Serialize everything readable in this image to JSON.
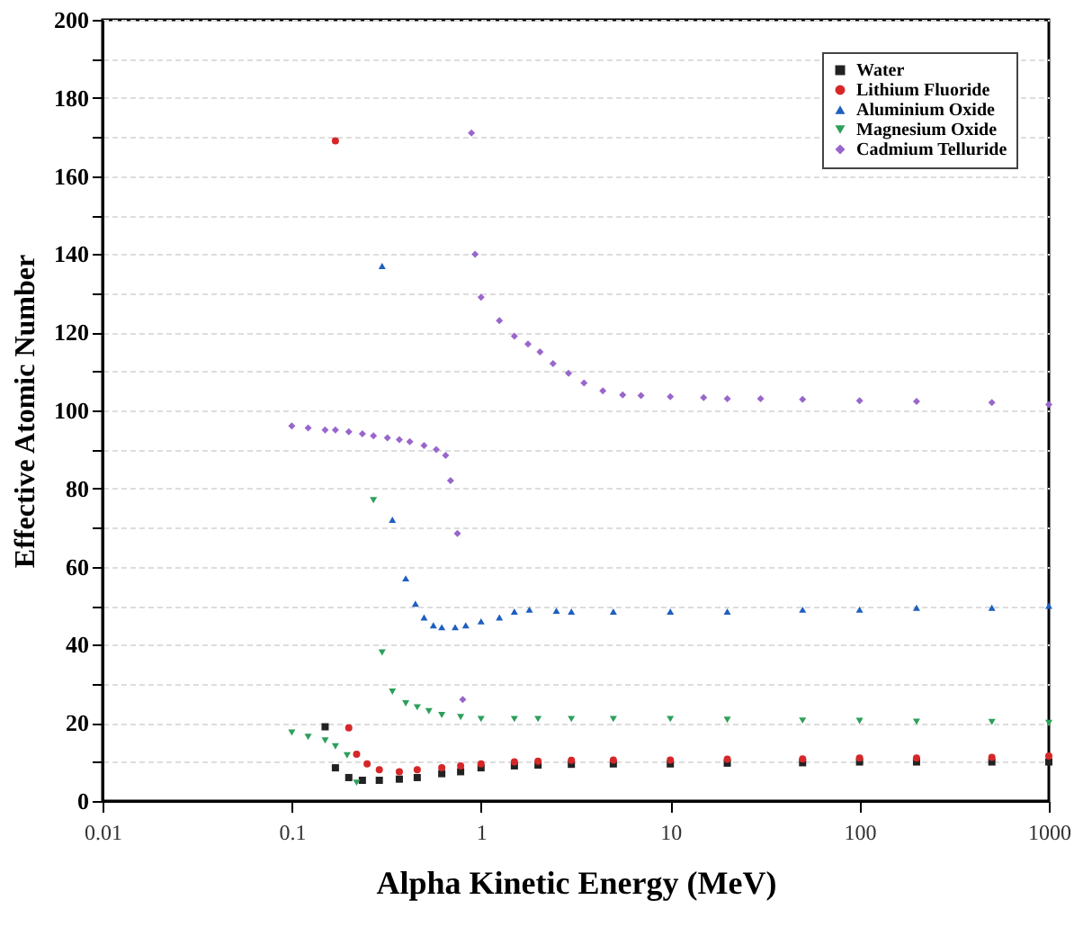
{
  "chart_data": {
    "type": "scatter",
    "xlabel": "Alpha Kinetic Energy (MeV)",
    "ylabel": "Effective Atomic Number",
    "log": "x",
    "xlim": [
      0.01,
      1000
    ],
    "xticks": [
      0.01,
      0.1,
      1,
      10,
      100,
      1000
    ],
    "ylim": [
      0,
      200
    ],
    "yticks": [
      0,
      {
        "value": 10,
        "label": null
      },
      20,
      {
        "value": 30,
        "label": null
      },
      40,
      {
        "value": 50,
        "label": null
      },
      60,
      {
        "value": 70,
        "label": null
      },
      80,
      {
        "value": 90,
        "label": null
      },
      100,
      {
        "value": 110,
        "label": null
      },
      120,
      {
        "value": 130,
        "label": null
      },
      140,
      {
        "value": 150,
        "label": null
      },
      160,
      {
        "value": 170,
        "label": null
      },
      180,
      {
        "value": 190,
        "label": null
      },
      200
    ],
    "grid": "y",
    "legend": "top right",
    "series": [
      {
        "name": "Water",
        "color": "#222222",
        "marker": "square",
        "x": [
          0.15,
          0.17,
          0.2,
          0.236,
          0.29,
          0.37,
          0.46,
          0.62,
          0.78,
          1.0,
          1.5,
          2,
          3,
          5,
          10,
          20,
          50,
          100,
          200,
          500,
          1000
        ],
        "values": [
          19,
          8.5,
          6,
          5.3,
          5.3,
          5.6,
          6,
          7,
          7.5,
          8.5,
          9,
          9.2,
          9.4,
          9.5,
          9.5,
          9.7,
          9.8,
          10,
          10,
          10,
          10
        ]
      },
      {
        "name": "Lithium Fluoride",
        "color": "#d62728",
        "marker": "circle",
        "x": [
          0.17,
          0.2,
          0.22,
          0.25,
          0.29,
          0.37,
          0.46,
          0.62,
          0.78,
          1.0,
          1.5,
          2,
          3,
          5,
          10,
          20,
          50,
          100,
          200,
          500,
          1000
        ],
        "values": [
          169,
          18.7,
          12,
          9.5,
          8,
          7.5,
          8,
          8.5,
          9,
          9.5,
          10,
          10.2,
          10.4,
          10.5,
          10.5,
          10.7,
          10.8,
          11,
          11,
          11.2,
          11.5
        ]
      },
      {
        "name": "Aluminium Oxide",
        "color": "#1f5fbf",
        "marker": "triangle",
        "x": [
          0.3,
          0.34,
          0.4,
          0.45,
          0.5,
          0.56,
          0.62,
          0.73,
          0.83,
          1.0,
          1.25,
          1.5,
          1.8,
          2.5,
          3,
          5,
          10,
          20,
          50,
          100,
          200,
          500,
          1000
        ],
        "values": [
          137,
          72,
          57,
          50.5,
          47,
          45,
          44.5,
          44.5,
          45,
          46,
          47,
          48.5,
          49,
          48.7,
          48.5,
          48.5,
          48.5,
          48.5,
          49,
          49,
          49.5,
          49.5,
          50
        ]
      },
      {
        "name": "Magnesium Oxide",
        "color": "#2ca05a",
        "marker": "triangle-down",
        "x": [
          0.1,
          0.122,
          0.15,
          0.17,
          0.196,
          0.22,
          0.27,
          0.3,
          0.34,
          0.4,
          0.46,
          0.53,
          0.62,
          0.78,
          1.0,
          1.5,
          2,
          3,
          5,
          10,
          20,
          50,
          100,
          200,
          500,
          1000
        ],
        "values": [
          17.5,
          16.4,
          15.5,
          14,
          11.7,
          4.7,
          77,
          38,
          28,
          25,
          24,
          23,
          22,
          21.5,
          21,
          21,
          21,
          21,
          21,
          21,
          20.8,
          20.6,
          20.5,
          20.3,
          20.2,
          20
        ]
      },
      {
        "name": "Cadmium Telluride",
        "color": "#9966cc",
        "marker": "diamond",
        "x": [
          0.1,
          0.122,
          0.15,
          0.17,
          0.2,
          0.236,
          0.27,
          0.32,
          0.37,
          0.42,
          0.5,
          0.58,
          0.65,
          0.69,
          0.75,
          0.8,
          0.89,
          0.93,
          1.0,
          1.25,
          1.5,
          1.77,
          2.05,
          2.4,
          2.9,
          3.5,
          4.4,
          5.6,
          7,
          10,
          15,
          20,
          30,
          50,
          100,
          200,
          500,
          1000
        ],
        "values": [
          96,
          95.5,
          95,
          95,
          94.5,
          94,
          93.5,
          93,
          92.5,
          92,
          91,
          90,
          88.5,
          82,
          68.5,
          26,
          171,
          140,
          129,
          123,
          119,
          117,
          115,
          112,
          109.5,
          107,
          105,
          104,
          103.8,
          103.5,
          103.3,
          103,
          103,
          102.8,
          102.5,
          102.3,
          102,
          101.5
        ]
      }
    ]
  }
}
